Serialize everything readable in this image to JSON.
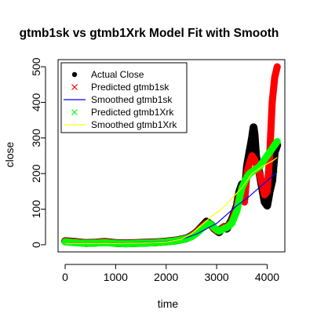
{
  "chart_data": {
    "type": "scatter",
    "title": "gtmb1sk vs gtmb1Xrk Model Fit with Smooth",
    "xlabel": "time",
    "ylabel": "close",
    "xlim": [
      -140,
      4350
    ],
    "ylim": [
      -20,
      520
    ],
    "x_ticks": [
      0,
      1000,
      2000,
      3000,
      4000
    ],
    "x_tick_labels": [
      "0",
      "1000",
      "2000",
      "3000",
      "4000"
    ],
    "y_ticks": [
      0,
      100,
      200,
      300,
      400,
      500
    ],
    "y_tick_labels": [
      "0",
      "100",
      "200",
      "300",
      "400",
      "500"
    ],
    "grid": false,
    "legend_position": "top-left",
    "series": [
      {
        "name": "Actual Close",
        "kind": "points",
        "marker": "filled-circle",
        "color": "#000000",
        "x": [
          0,
          200,
          400,
          600,
          800,
          1000,
          1200,
          1400,
          1600,
          1800,
          2000,
          2200,
          2400,
          2500,
          2600,
          2700,
          2800,
          2850,
          2900,
          2950,
          3000,
          3050,
          3100,
          3150,
          3200,
          3300,
          3400,
          3450,
          3500,
          3550,
          3600,
          3650,
          3700,
          3730,
          3750,
          3780,
          3800,
          3850,
          3900,
          3950,
          4000,
          4050,
          4100,
          4150,
          4200
        ],
        "y": [
          10,
          8,
          5,
          6,
          8,
          5,
          4,
          5,
          6,
          7,
          9,
          12,
          18,
          25,
          35,
          50,
          65,
          60,
          55,
          45,
          40,
          35,
          45,
          50,
          45,
          70,
          110,
          150,
          170,
          130,
          220,
          260,
          300,
          330,
          310,
          250,
          230,
          200,
          160,
          120,
          110,
          150,
          180,
          260,
          280
        ]
      },
      {
        "name": "Predicted gtmb1sk",
        "kind": "points",
        "marker": "x",
        "color": "#ff0000",
        "x": [
          0,
          200,
          400,
          600,
          800,
          1000,
          1200,
          1400,
          1600,
          1800,
          2000,
          2200,
          2400,
          2500,
          2600,
          2700,
          2800,
          2850,
          2900,
          2950,
          3000,
          3050,
          3100,
          3150,
          3200,
          3300,
          3400,
          3450,
          3500,
          3550,
          3600,
          3650,
          3700,
          3750,
          3800,
          3850,
          3900,
          3950,
          4000,
          4050,
          4100,
          4150,
          4200
        ],
        "y": [
          10,
          8,
          5,
          6,
          8,
          5,
          4,
          5,
          6,
          7,
          9,
          12,
          18,
          25,
          35,
          48,
          60,
          58,
          52,
          45,
          40,
          38,
          45,
          50,
          48,
          65,
          105,
          140,
          150,
          120,
          200,
          230,
          250,
          240,
          220,
          200,
          170,
          140,
          150,
          250,
          400,
          470,
          500
        ]
      },
      {
        "name": "Smoothed gtmb1sk",
        "kind": "line",
        "color": "#0000ff",
        "x": [
          0,
          500,
          1000,
          1500,
          2000,
          2300,
          2600,
          2800,
          3000,
          3200,
          3400,
          3600,
          3800,
          4000,
          4200
        ],
        "y": [
          5,
          5,
          5,
          6,
          9,
          15,
          30,
          45,
          60,
          85,
          110,
          130,
          155,
          180,
          205
        ]
      },
      {
        "name": "Predicted gtmb1Xrk",
        "kind": "points",
        "marker": "x",
        "color": "#00ff00",
        "x": [
          0,
          200,
          400,
          600,
          800,
          1000,
          1200,
          1400,
          1600,
          1800,
          2000,
          2200,
          2400,
          2500,
          2600,
          2700,
          2800,
          2850,
          2900,
          2950,
          3000,
          3050,
          3100,
          3150,
          3200,
          3300,
          3400,
          3450,
          3500,
          3550,
          3600,
          3650,
          3700,
          3750,
          3800,
          3850,
          3900,
          3950,
          4000,
          4050,
          4100,
          4150,
          4200
        ],
        "y": [
          8,
          6,
          4,
          5,
          6,
          4,
          3,
          4,
          5,
          6,
          8,
          11,
          17,
          22,
          32,
          45,
          55,
          60,
          55,
          48,
          42,
          38,
          42,
          46,
          48,
          60,
          95,
          130,
          160,
          175,
          190,
          200,
          205,
          210,
          215,
          220,
          230,
          240,
          250,
          260,
          270,
          280,
          290
        ]
      },
      {
        "name": "Smoothed gtmb1Xrk",
        "kind": "line",
        "color": "#ffff00",
        "x": [
          0,
          500,
          1000,
          1500,
          2000,
          2300,
          2500,
          2700,
          2900,
          3100,
          3300,
          3500,
          3700,
          3900,
          4100,
          4200
        ],
        "y": [
          4,
          4,
          4,
          5,
          8,
          15,
          30,
          55,
          80,
          100,
          130,
          160,
          200,
          220,
          235,
          245
        ]
      }
    ]
  }
}
